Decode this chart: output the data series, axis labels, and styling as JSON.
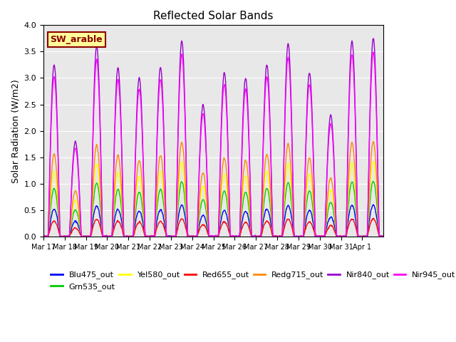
{
  "title": "Reflected Solar Bands",
  "ylabel": "Solar Radiation (W/m2)",
  "ylim": [
    0,
    4.0
  ],
  "yticks": [
    0.0,
    0.5,
    1.0,
    1.5,
    2.0,
    2.5,
    3.0,
    3.5,
    4.0
  ],
  "annotation_text": "SW_arable",
  "annotation_color": "#8B0000",
  "annotation_bg": "#FFFF99",
  "annotation_border": "#8B0000",
  "series_colors": {
    "Blu475_out": "#0000FF",
    "Grn535_out": "#00CC00",
    "Yel580_out": "#FFFF00",
    "Red655_out": "#FF0000",
    "Redg715_out": "#FF8800",
    "Nir840_out": "#9900CC",
    "Nir945_out": "#FF00FF"
  },
  "x_tick_labels": [
    "Mar 17",
    "Mar 18",
    "Mar 19",
    "Mar 20",
    "Mar 21",
    "Mar 22",
    "Mar 23",
    "Mar 24",
    "Mar 25",
    "Mar 26",
    "Mar 27",
    "Mar 28",
    "Mar 29",
    "Mar 30",
    "Mar 31",
    "Apr 1"
  ],
  "num_days": 16,
  "points_per_day": 48,
  "background_color": "#E8E8E8",
  "day_peaks": [
    3.25,
    1.8,
    3.6,
    3.2,
    3.0,
    3.2,
    3.7,
    2.5,
    3.1,
    3.0,
    3.25,
    3.65,
    3.1,
    2.3,
    3.7,
    3.75
  ],
  "ratios": {
    "Blu475_out": 0.16,
    "Grn535_out": 0.28,
    "Yel580_out": 0.38,
    "Red655_out": 0.09,
    "Redg715_out": 0.48,
    "Nir840_out": 1.0,
    "Nir945_out": 0.93
  },
  "plot_order": [
    "Blu475_out",
    "Grn535_out",
    "Yel580_out",
    "Red655_out",
    "Redg715_out",
    "Nir840_out",
    "Nir945_out"
  ],
  "legend_labels": [
    "Blu475_out",
    "Grn535_out",
    "Yel580_out",
    "Red655_out",
    "Redg715_out",
    "Nir840_out",
    "Nir945_out"
  ]
}
